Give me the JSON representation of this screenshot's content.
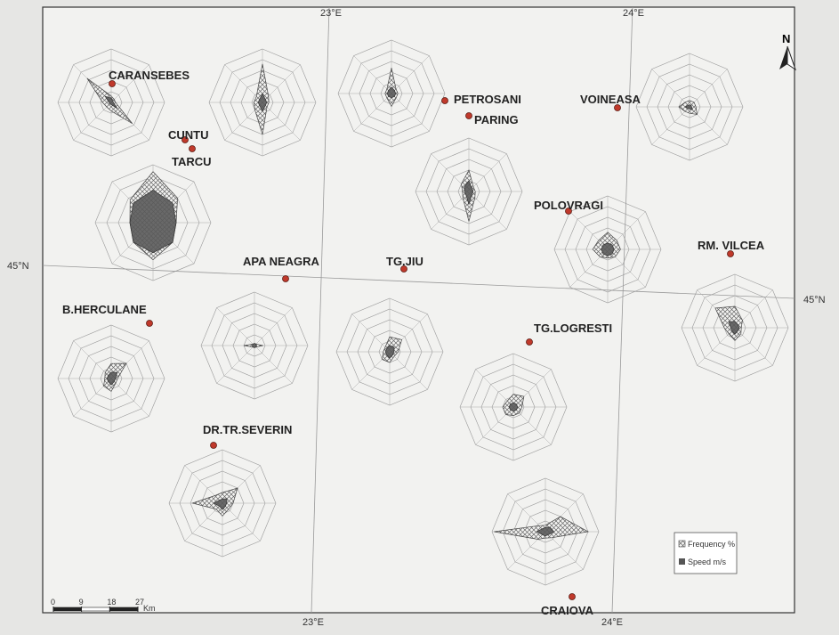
{
  "map": {
    "stations": [
      "CARANSEBES",
      "CUNTU",
      "TARCU",
      "PETROSANI",
      "PARING",
      "VOINEASA",
      "POLOVRAGI",
      "RM. VILCEA",
      "APA NEAGRA",
      "TG.JIU",
      "B.HERCULANE",
      "TG.LOGRESTI",
      "DR.TR.SEVERIN",
      "CRAIOVA"
    ],
    "meridians": [
      "23°E",
      "24°E"
    ],
    "parallel": "45°N",
    "north": "N",
    "legend": [
      "Frequency %",
      "Speed m/s"
    ],
    "scale_bar": {
      "ticks": [
        0,
        9,
        18,
        27
      ],
      "unit": "Km"
    }
  },
  "rose_scale": {
    "max": 25,
    "rings": [
      5,
      10,
      15,
      20,
      25
    ]
  },
  "roses": [
    {
      "frequency": [
        3,
        2,
        2,
        14,
        4,
        3,
        4,
        16
      ],
      "speed": [
        2,
        1,
        1,
        4,
        1,
        1,
        1,
        4
      ]
    },
    {
      "frequency": [
        18,
        4,
        3,
        3,
        15,
        5,
        4,
        4
      ],
      "speed": [
        4,
        2,
        2,
        2,
        4,
        2,
        2,
        2
      ]
    },
    {
      "frequency": [
        12,
        3,
        3,
        3,
        6,
        3,
        3,
        3
      ],
      "speed": [
        3,
        2,
        2,
        2,
        2,
        2,
        2,
        2
      ]
    },
    {
      "frequency": [
        3,
        3,
        3,
        5,
        3,
        3,
        5,
        3
      ],
      "speed": [
        1,
        1,
        1,
        2,
        1,
        1,
        2,
        1
      ]
    },
    {
      "frequency": [
        22,
        15,
        10,
        12,
        16,
        12,
        10,
        14
      ],
      "speed": [
        14,
        12,
        10,
        12,
        13,
        12,
        10,
        12
      ]
    },
    {
      "frequency": [
        10,
        3,
        3,
        4,
        14,
        4,
        3,
        5
      ],
      "speed": [
        5,
        2,
        2,
        2,
        6,
        2,
        2,
        3
      ]
    },
    {
      "frequency": [
        8,
        6,
        6,
        5,
        4,
        5,
        7,
        6
      ],
      "speed": [
        3,
        3,
        3,
        3,
        3,
        3,
        3,
        3
      ]
    },
    {
      "frequency": [
        10,
        5,
        3,
        4,
        6,
        4,
        5,
        13
      ],
      "speed": [
        3,
        2,
        2,
        2,
        3,
        2,
        2,
        4
      ]
    },
    {
      "frequency": [
        7,
        10,
        3,
        3,
        6,
        5,
        3,
        4
      ],
      "speed": [
        3,
        4,
        2,
        2,
        3,
        2,
        2,
        2
      ]
    },
    {
      "frequency": [
        1,
        1,
        4,
        1,
        1,
        1,
        5,
        1
      ],
      "speed": [
        1,
        1,
        1,
        1,
        1,
        1,
        1,
        1
      ]
    },
    {
      "frequency": [
        7,
        8,
        4,
        3,
        5,
        5,
        3,
        3
      ],
      "speed": [
        3,
        3,
        2,
        2,
        3,
        2,
        2,
        2
      ]
    },
    {
      "frequency": [
        6,
        7,
        4,
        4,
        4,
        5,
        5,
        4
      ],
      "speed": [
        2,
        2,
        2,
        2,
        2,
        2,
        2,
        2
      ]
    },
    {
      "frequency": [
        5,
        10,
        5,
        4,
        6,
        4,
        14,
        5
      ],
      "speed": [
        2,
        3,
        2,
        2,
        3,
        2,
        4,
        2
      ]
    },
    {
      "frequency": [
        3,
        10,
        20,
        4,
        3,
        5,
        24,
        4
      ],
      "speed": [
        2,
        3,
        4,
        2,
        2,
        2,
        4,
        2
      ]
    }
  ]
}
